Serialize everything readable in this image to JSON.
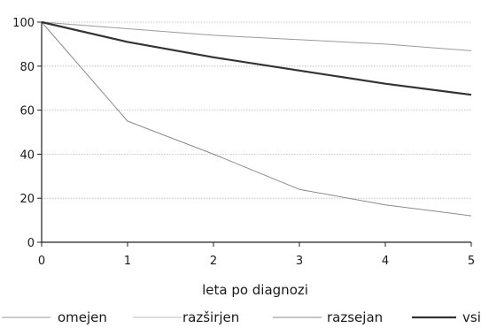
{
  "chart_data": {
    "type": "line",
    "title": "",
    "xlabel": "leta po diagnozi",
    "ylabel": "",
    "x": [
      0,
      1,
      2,
      3,
      4,
      5
    ],
    "xlim": [
      0,
      5
    ],
    "ylim": [
      0,
      100
    ],
    "xticks": [
      "0",
      "1",
      "2",
      "3",
      "4",
      "5"
    ],
    "yticks": [
      "0",
      "20",
      "40",
      "60",
      "80",
      "100"
    ],
    "grid": "horizontal",
    "legend_position": "bottom",
    "series": [
      {
        "name": "omejen",
        "values": [
          100,
          97,
          94,
          92,
          90,
          87
        ],
        "color": "#9a9a9a",
        "width": 1
      },
      {
        "name": "razširjen",
        "values": [
          100,
          91,
          84,
          78,
          72,
          67
        ],
        "color": "#bdbdbd",
        "width": 1
      },
      {
        "name": "razsejan",
        "values": [
          100,
          55,
          40,
          24,
          17,
          12
        ],
        "color": "#8a8a8a",
        "width": 1
      },
      {
        "name": "vsi",
        "values": [
          100,
          91,
          84,
          78,
          72,
          67
        ],
        "color": "#333333",
        "width": 2.2
      }
    ]
  }
}
